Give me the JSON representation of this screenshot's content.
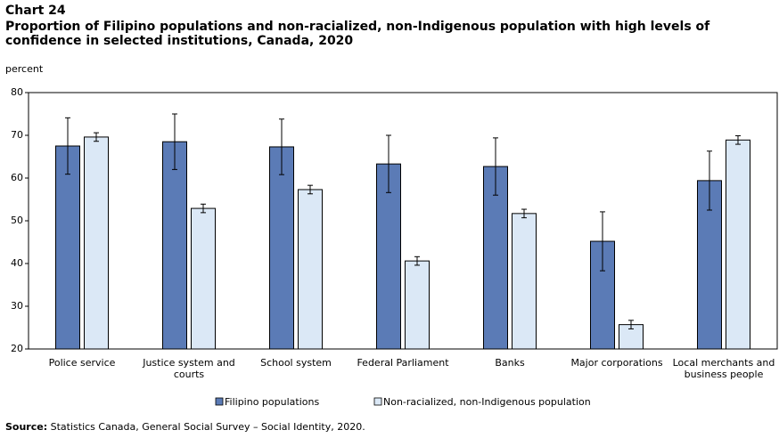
{
  "chart_data": {
    "type": "bar",
    "chart_label": "Chart 24",
    "title": "Proportion of Filipino populations and non-racialized, non-Indigenous population with high levels of confidence in selected institutions, Canada, 2020",
    "y_label": "percent",
    "categories": [
      "Police service",
      "Justice system and courts",
      "School system",
      "Federal Parliament",
      "Banks",
      "Major corporations",
      "Local merchants and business people"
    ],
    "series": [
      {
        "name": "Filipino populations",
        "color": "#5b7bb6",
        "values": [
          67.5,
          68.5,
          67.3,
          63.3,
          62.7,
          45.2,
          59.4
        ],
        "errors": [
          6.6,
          6.5,
          6.5,
          6.7,
          6.7,
          6.9,
          6.9
        ]
      },
      {
        "name": "Non-racialized, non-Indigenous population",
        "color": "#dbe8f6",
        "values": [
          69.6,
          52.9,
          57.3,
          40.6,
          51.7,
          25.7,
          68.9
        ],
        "errors": [
          1,
          1,
          1,
          1,
          1,
          1,
          1
        ]
      }
    ],
    "ylim": [
      20,
      80
    ],
    "yticks": [
      20,
      30,
      40,
      50,
      60,
      70,
      80
    ],
    "source_label": "Source:",
    "source": "Statistics Canada, General Social Survey – Social Identity, 2020."
  }
}
